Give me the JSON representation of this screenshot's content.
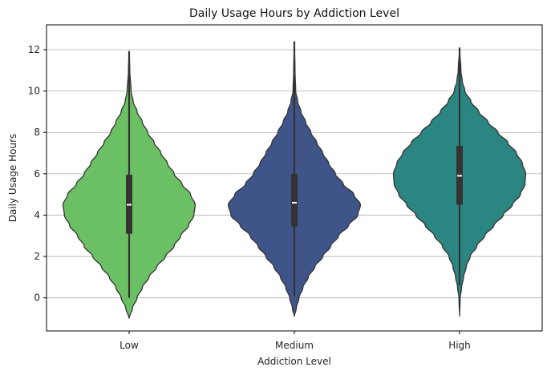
{
  "chart_data": {
    "type": "violin",
    "title": "Daily Usage Hours by Addiction Level",
    "xlabel": "Addiction Level",
    "ylabel": "Daily Usage Hours",
    "ylim": [
      -1.6,
      13.2
    ],
    "yticks": [
      0,
      2,
      4,
      6,
      8,
      10,
      12
    ],
    "grid": "horizontal",
    "categories": [
      "Low",
      "Medium",
      "High"
    ],
    "series": [
      {
        "category": "Low",
        "color": "#6cc064",
        "min": 0.0,
        "q1": 3.1,
        "median": 4.5,
        "q3": 5.95,
        "max": 11.9,
        "kde_min": -1.0,
        "kde_max": 11.95,
        "density_profile": [
          [
            -1.0,
            0.0
          ],
          [
            -0.5,
            0.05
          ],
          [
            0.0,
            0.12
          ],
          [
            0.5,
            0.2
          ],
          [
            1.0,
            0.3
          ],
          [
            1.5,
            0.42
          ],
          [
            2.0,
            0.55
          ],
          [
            2.5,
            0.68
          ],
          [
            3.0,
            0.78
          ],
          [
            3.5,
            0.9
          ],
          [
            4.0,
            0.98
          ],
          [
            4.5,
            1.0
          ],
          [
            5.0,
            0.93
          ],
          [
            5.5,
            0.8
          ],
          [
            6.0,
            0.68
          ],
          [
            6.5,
            0.58
          ],
          [
            7.0,
            0.48
          ],
          [
            7.5,
            0.38
          ],
          [
            8.0,
            0.28
          ],
          [
            8.5,
            0.2
          ],
          [
            9.0,
            0.12
          ],
          [
            9.5,
            0.06
          ],
          [
            10.0,
            0.03
          ],
          [
            11.0,
            0.01
          ],
          [
            11.95,
            0.0
          ]
        ]
      },
      {
        "category": "Medium",
        "color": "#3f5488",
        "min": 0.1,
        "q1": 3.45,
        "median": 4.6,
        "q3": 6.0,
        "max": 12.4,
        "kde_min": -0.9,
        "kde_max": 12.4,
        "density_profile": [
          [
            -0.9,
            0.0
          ],
          [
            -0.5,
            0.03
          ],
          [
            0.0,
            0.07
          ],
          [
            0.5,
            0.13
          ],
          [
            1.0,
            0.21
          ],
          [
            1.5,
            0.31
          ],
          [
            2.0,
            0.43
          ],
          [
            2.5,
            0.55
          ],
          [
            3.0,
            0.67
          ],
          [
            3.5,
            0.82
          ],
          [
            4.0,
            0.96
          ],
          [
            4.5,
            1.0
          ],
          [
            5.0,
            0.9
          ],
          [
            5.5,
            0.74
          ],
          [
            6.0,
            0.62
          ],
          [
            6.5,
            0.52
          ],
          [
            7.0,
            0.43
          ],
          [
            7.5,
            0.34
          ],
          [
            8.0,
            0.25
          ],
          [
            8.5,
            0.17
          ],
          [
            9.0,
            0.1
          ],
          [
            9.5,
            0.05
          ],
          [
            10.0,
            0.02
          ],
          [
            11.0,
            0.01
          ],
          [
            12.4,
            0.0
          ]
        ]
      },
      {
        "category": "High",
        "color": "#2b8580",
        "min": 0.6,
        "q1": 4.5,
        "median": 5.9,
        "q3": 7.35,
        "max": 12.1,
        "kde_min": -0.9,
        "kde_max": 12.1,
        "density_profile": [
          [
            -0.9,
            0.0
          ],
          [
            0.0,
            0.01
          ],
          [
            0.5,
            0.03
          ],
          [
            1.0,
            0.06
          ],
          [
            1.5,
            0.1
          ],
          [
            2.0,
            0.16
          ],
          [
            2.5,
            0.26
          ],
          [
            3.0,
            0.38
          ],
          [
            3.5,
            0.52
          ],
          [
            4.0,
            0.66
          ],
          [
            4.5,
            0.8
          ],
          [
            5.0,
            0.92
          ],
          [
            5.5,
            0.99
          ],
          [
            6.0,
            1.0
          ],
          [
            6.5,
            0.95
          ],
          [
            7.0,
            0.86
          ],
          [
            7.5,
            0.73
          ],
          [
            8.0,
            0.58
          ],
          [
            8.5,
            0.43
          ],
          [
            9.0,
            0.29
          ],
          [
            9.5,
            0.17
          ],
          [
            10.0,
            0.08
          ],
          [
            10.5,
            0.04
          ],
          [
            11.0,
            0.02
          ],
          [
            12.1,
            0.0
          ]
        ]
      }
    ]
  }
}
